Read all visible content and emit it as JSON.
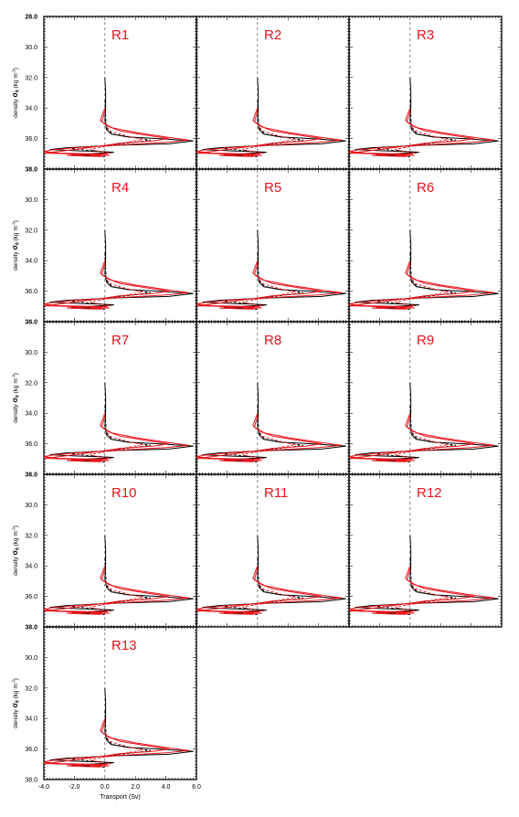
{
  "colors": {
    "black": "#000000",
    "red": "#e8141b",
    "dash": "#555555"
  },
  "y_axis": {
    "label_prefix": "density ",
    "label_sigma": "σ",
    "label_sub": "θ",
    "label_units_pre": " (kg m",
    "label_units_sup": "-3",
    "label_units_post": ")",
    "ticks": [
      "28.0",
      "30.0",
      "32.0",
      "34.0",
      "36.0",
      "38.0"
    ]
  },
  "x_axis": {
    "label": "Transport (Sv)",
    "ticks": [
      "-4.0",
      "-2.0",
      "0.0",
      "2.0",
      "4.0",
      "6.0"
    ]
  },
  "chart_data": {
    "type": "line",
    "layout": "small multiples",
    "xlim": [
      -4,
      6
    ],
    "ylim": [
      38,
      28
    ],
    "ylim_note": "density increasing downward",
    "panels": [
      "R1",
      "R2",
      "R3",
      "R4",
      "R5",
      "R6",
      "R7",
      "R8",
      "R9",
      "R10",
      "R11",
      "R12",
      "R13"
    ],
    "reference_line_x": 0,
    "series": [
      {
        "style": "black-solid",
        "points": [
          [
            0,
            32.0
          ],
          [
            0.05,
            33.0
          ],
          [
            0.05,
            34.0
          ],
          [
            0.0,
            34.8
          ],
          [
            0.1,
            35.4
          ],
          [
            0.4,
            35.7
          ],
          [
            1.5,
            35.9
          ],
          [
            3.5,
            36.0
          ],
          [
            5.8,
            36.15
          ],
          [
            4.2,
            36.35
          ],
          [
            0.6,
            36.45
          ],
          [
            -2.5,
            36.6
          ],
          [
            -3.6,
            36.72
          ],
          [
            -1.8,
            36.8
          ],
          [
            -0.3,
            36.85
          ],
          [
            0.6,
            36.9
          ],
          [
            -1.0,
            37.0
          ],
          [
            -2.2,
            37.05
          ],
          [
            -1.0,
            37.12
          ],
          [
            -0.2,
            37.15
          ]
        ]
      },
      {
        "style": "black-dashed",
        "points": [
          [
            0,
            33.5
          ],
          [
            0.05,
            34.5
          ],
          [
            0.1,
            35.3
          ],
          [
            0.5,
            35.7
          ],
          [
            2.0,
            35.95
          ],
          [
            3.0,
            36.1
          ],
          [
            1.5,
            36.3
          ],
          [
            0.3,
            36.45
          ],
          [
            -1.5,
            36.55
          ],
          [
            -2.2,
            36.65
          ],
          [
            -0.8,
            36.8
          ],
          [
            0.2,
            36.9
          ],
          [
            -0.5,
            37.0
          ],
          [
            -1.5,
            37.05
          ],
          [
            -0.5,
            37.15
          ],
          [
            0,
            37.2
          ]
        ]
      },
      {
        "style": "red-solid-a",
        "points": [
          [
            0,
            34.0
          ],
          [
            -0.3,
            34.8
          ],
          [
            -0.1,
            35.0
          ],
          [
            0.5,
            35.3
          ],
          [
            2.0,
            35.6
          ],
          [
            4.0,
            35.9
          ],
          [
            5.5,
            36.1
          ],
          [
            4.0,
            36.25
          ],
          [
            0.5,
            36.45
          ],
          [
            -2.0,
            36.6
          ],
          [
            -3.5,
            36.75
          ],
          [
            -4.0,
            36.85
          ],
          [
            -3.0,
            36.95
          ],
          [
            -1.0,
            37.0
          ],
          [
            0.2,
            37.0
          ],
          [
            -1.2,
            37.05
          ],
          [
            -2.5,
            37.1
          ],
          [
            -1.5,
            37.15
          ],
          [
            -0.3,
            37.18
          ]
        ]
      },
      {
        "style": "red-solid-b",
        "points": [
          [
            0,
            34.2
          ],
          [
            -0.2,
            34.9
          ],
          [
            0.2,
            35.2
          ],
          [
            1.0,
            35.5
          ],
          [
            2.5,
            35.75
          ],
          [
            4.2,
            36.0
          ],
          [
            3.2,
            36.15
          ],
          [
            1.0,
            36.3
          ],
          [
            0,
            36.45
          ],
          [
            -1.5,
            36.65
          ],
          [
            -3.0,
            36.85
          ],
          [
            -4.0,
            36.95
          ],
          [
            -2.5,
            37.0
          ],
          [
            -0.8,
            37.05
          ],
          [
            0.3,
            37.1
          ],
          [
            -1.0,
            37.12
          ],
          [
            -0.2,
            37.16
          ]
        ]
      },
      {
        "style": "red-dashed",
        "points": [
          [
            0,
            35.0
          ],
          [
            0.3,
            35.5
          ],
          [
            1.5,
            35.85
          ],
          [
            2.5,
            36.05
          ],
          [
            1.2,
            36.3
          ],
          [
            0.2,
            36.5
          ],
          [
            -1.0,
            36.7
          ],
          [
            -0.3,
            36.85
          ],
          [
            0.4,
            36.95
          ],
          [
            -0.6,
            37.05
          ],
          [
            0,
            37.12
          ]
        ]
      }
    ]
  }
}
